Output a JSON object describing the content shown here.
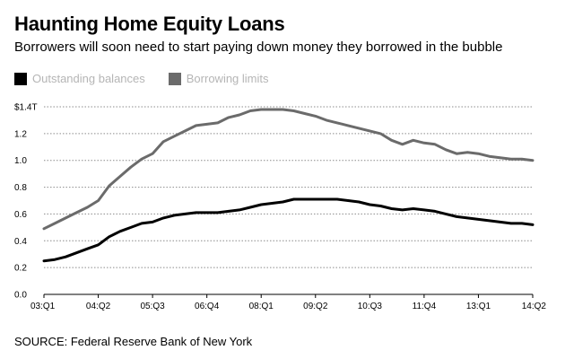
{
  "header": {
    "title": "Haunting Home Equity Loans",
    "subtitle": "Borrowers will soon need to start paying down money they borrowed in the bubble"
  },
  "footer": {
    "source": "SOURCE: Federal Reserve Bank of New York"
  },
  "colors": {
    "balances": "#000000",
    "limits": "#6b6b6b",
    "grid": "#8c8c8c",
    "legend_text": "#b5b5b5"
  },
  "chart_data": {
    "type": "line",
    "title": "Haunting Home Equity Loans",
    "subtitle": "Borrowers will soon need to start paying down money they borrowed in the bubble",
    "xlabel": "",
    "ylabel": "",
    "grid": true,
    "legend_position": "top-left",
    "ylim": [
      0,
      1.4
    ],
    "y_ticks": [
      0.0,
      0.2,
      0.4,
      0.6,
      0.8,
      1.0,
      1.2,
      1.4
    ],
    "y_tick_labels": [
      "0.0",
      "0.2",
      "0.4",
      "0.6",
      "0.8",
      "1.0",
      "1.2",
      "$1.4T"
    ],
    "x_ticks": [
      "03:Q1",
      "04:Q2",
      "05:Q3",
      "06:Q4",
      "08:Q1",
      "09:Q2",
      "10:Q3",
      "11:Q4",
      "13:Q1",
      "14:Q2"
    ],
    "x_tick_positions": [
      0,
      5,
      10,
      15,
      20,
      25,
      30,
      35,
      40,
      45
    ],
    "x": [
      "03:Q1",
      "03:Q2",
      "03:Q3",
      "03:Q4",
      "04:Q1",
      "04:Q2",
      "04:Q3",
      "04:Q4",
      "05:Q1",
      "05:Q2",
      "05:Q3",
      "05:Q4",
      "06:Q1",
      "06:Q2",
      "06:Q3",
      "06:Q4",
      "07:Q1",
      "07:Q2",
      "07:Q3",
      "07:Q4",
      "08:Q1",
      "08:Q2",
      "08:Q3",
      "08:Q4",
      "09:Q1",
      "09:Q2",
      "09:Q3",
      "09:Q4",
      "10:Q1",
      "10:Q2",
      "10:Q3",
      "10:Q4",
      "11:Q1",
      "11:Q2",
      "11:Q3",
      "11:Q4",
      "12:Q1",
      "12:Q2",
      "12:Q3",
      "12:Q4",
      "13:Q1",
      "13:Q2",
      "13:Q3",
      "13:Q4",
      "14:Q1",
      "14:Q2"
    ],
    "series": [
      {
        "name": "Borrowing limits",
        "values": [
          0.49,
          0.53,
          0.57,
          0.61,
          0.65,
          0.7,
          0.81,
          0.88,
          0.95,
          1.01,
          1.05,
          1.14,
          1.18,
          1.22,
          1.26,
          1.27,
          1.28,
          1.32,
          1.34,
          1.37,
          1.38,
          1.38,
          1.38,
          1.37,
          1.35,
          1.33,
          1.3,
          1.28,
          1.26,
          1.24,
          1.22,
          1.2,
          1.15,
          1.12,
          1.15,
          1.13,
          1.12,
          1.08,
          1.05,
          1.06,
          1.05,
          1.03,
          1.02,
          1.01,
          1.01,
          1.0
        ]
      },
      {
        "name": "Outstanding balances",
        "values": [
          0.25,
          0.26,
          0.28,
          0.31,
          0.34,
          0.37,
          0.43,
          0.47,
          0.5,
          0.53,
          0.54,
          0.57,
          0.59,
          0.6,
          0.61,
          0.61,
          0.61,
          0.62,
          0.63,
          0.65,
          0.67,
          0.68,
          0.69,
          0.71,
          0.71,
          0.71,
          0.71,
          0.71,
          0.7,
          0.69,
          0.67,
          0.66,
          0.64,
          0.63,
          0.64,
          0.63,
          0.62,
          0.6,
          0.58,
          0.57,
          0.56,
          0.55,
          0.54,
          0.53,
          0.53,
          0.52
        ]
      }
    ]
  }
}
